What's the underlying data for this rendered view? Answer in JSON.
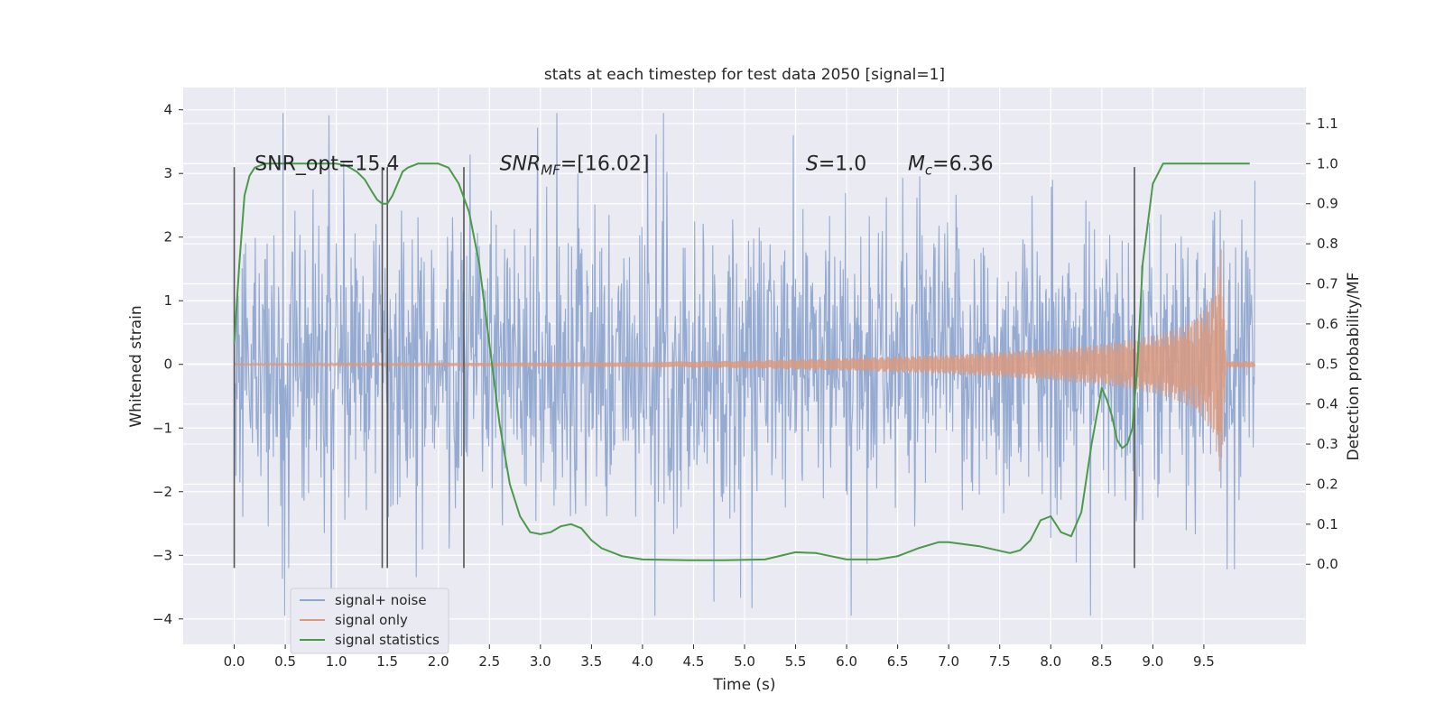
{
  "chart_data": {
    "type": "line",
    "title": "stats at each timestep for test data 2050 [signal=1]",
    "xlabel": "Time (s)",
    "ylabel": "Whitened strain",
    "ylabel_right": "Detection probability/MF",
    "xlim": [
      -0.5,
      10.5
    ],
    "ylim": [
      -4.4,
      4.35
    ],
    "ylim_right": [
      -0.2,
      1.19
    ],
    "x_ticks": [
      0.0,
      0.5,
      1.0,
      1.5,
      2.0,
      2.5,
      3.0,
      3.5,
      4.0,
      4.5,
      5.0,
      5.5,
      6.0,
      6.5,
      7.0,
      7.5,
      8.0,
      8.5,
      9.0,
      9.5
    ],
    "x_tick_labels": [
      "0.0",
      "0.5",
      "1.0",
      "1.5",
      "2.0",
      "2.5",
      "3.0",
      "3.5",
      "4.0",
      "4.5",
      "5.0",
      "5.5",
      "6.0",
      "6.5",
      "7.0",
      "7.5",
      "8.0",
      "8.5",
      "9.0",
      "9.5"
    ],
    "y_ticks": [
      -4,
      -3,
      -2,
      -1,
      0,
      1,
      2,
      3,
      4
    ],
    "y_tick_labels": [
      "−4",
      "−3",
      "−2",
      "−1",
      "0",
      "1",
      "2",
      "3",
      "4"
    ],
    "y_right_ticks": [
      0.0,
      0.1,
      0.2,
      0.3,
      0.4,
      0.5,
      0.6,
      0.7,
      0.8,
      0.9,
      1.0,
      1.1
    ],
    "y_right_tick_labels": [
      "0.0",
      "0.1",
      "0.2",
      "0.3",
      "0.4",
      "0.5",
      "0.6",
      "0.7",
      "0.8",
      "0.9",
      "1.0",
      "1.1"
    ],
    "grid": true,
    "legend_position": "lower-left",
    "annotations": [
      {
        "text": "SNR_opt=15.4",
        "x": 0.2,
        "y_right": 1.0
      },
      {
        "text": "SNR_MF=[16.02]",
        "x": 2.6,
        "y_right": 1.0
      },
      {
        "text": "S=1.0",
        "x": 5.6,
        "y_right": 1.0
      },
      {
        "text": "M_c=6.36",
        "x": 6.6,
        "y_right": 1.0
      }
    ],
    "vertical_markers": [
      0.0,
      1.45,
      1.5,
      2.25,
      8.82
    ],
    "vertical_marker_range": [
      -3.2,
      3.1
    ],
    "series": [
      {
        "name": "signal+ noise",
        "color": "#8fa6cf",
        "x_range": [
          0.0,
          10.0
        ],
        "envelope": "noise with amplitude about ±2.5, peaks to about ±4"
      },
      {
        "name": "signal only",
        "color": "#d99a80",
        "x": [
          0.0,
          2.0,
          4.0,
          5.0,
          6.0,
          7.0,
          7.5,
          8.0,
          8.5,
          9.0,
          9.3,
          9.5,
          9.6,
          9.67,
          9.72
        ],
        "amplitude": [
          0.01,
          0.02,
          0.04,
          0.06,
          0.1,
          0.15,
          0.2,
          0.25,
          0.32,
          0.45,
          0.6,
          0.85,
          1.15,
          1.85,
          0.05
        ]
      },
      {
        "name": "signal statistics",
        "color": "#4a9a4a",
        "axis": "right",
        "x": [
          0.0,
          0.05,
          0.1,
          0.15,
          0.2,
          0.3,
          0.5,
          0.8,
          1.0,
          1.1,
          1.2,
          1.28,
          1.35,
          1.4,
          1.45,
          1.5,
          1.55,
          1.6,
          1.65,
          1.7,
          1.8,
          2.0,
          2.1,
          2.2,
          2.3,
          2.4,
          2.5,
          2.6,
          2.7,
          2.8,
          2.9,
          3.0,
          3.1,
          3.2,
          3.3,
          3.4,
          3.5,
          3.6,
          3.8,
          4.0,
          4.5,
          4.8,
          5.2,
          5.5,
          5.7,
          6.0,
          6.3,
          6.5,
          6.7,
          6.9,
          7.0,
          7.3,
          7.6,
          7.7,
          7.8,
          7.9,
          8.0,
          8.1,
          8.2,
          8.3,
          8.4,
          8.5,
          8.55,
          8.6,
          8.65,
          8.7,
          8.75,
          8.8,
          8.85,
          8.9,
          9.0,
          9.1,
          9.5,
          9.95
        ],
        "y": [
          0.55,
          0.75,
          0.92,
          0.97,
          0.99,
          1.0,
          1.0,
          1.0,
          1.0,
          0.995,
          0.98,
          0.96,
          0.93,
          0.91,
          0.9,
          0.9,
          0.92,
          0.95,
          0.98,
          0.99,
          1.0,
          1.0,
          0.99,
          0.95,
          0.88,
          0.75,
          0.55,
          0.35,
          0.2,
          0.12,
          0.08,
          0.075,
          0.08,
          0.095,
          0.1,
          0.09,
          0.06,
          0.04,
          0.02,
          0.012,
          0.01,
          0.01,
          0.012,
          0.03,
          0.028,
          0.012,
          0.012,
          0.02,
          0.04,
          0.055,
          0.055,
          0.045,
          0.028,
          0.035,
          0.06,
          0.11,
          0.12,
          0.08,
          0.07,
          0.13,
          0.3,
          0.44,
          0.41,
          0.37,
          0.31,
          0.29,
          0.3,
          0.34,
          0.5,
          0.75,
          0.95,
          1.0,
          1.0,
          1.0
        ]
      }
    ]
  }
}
